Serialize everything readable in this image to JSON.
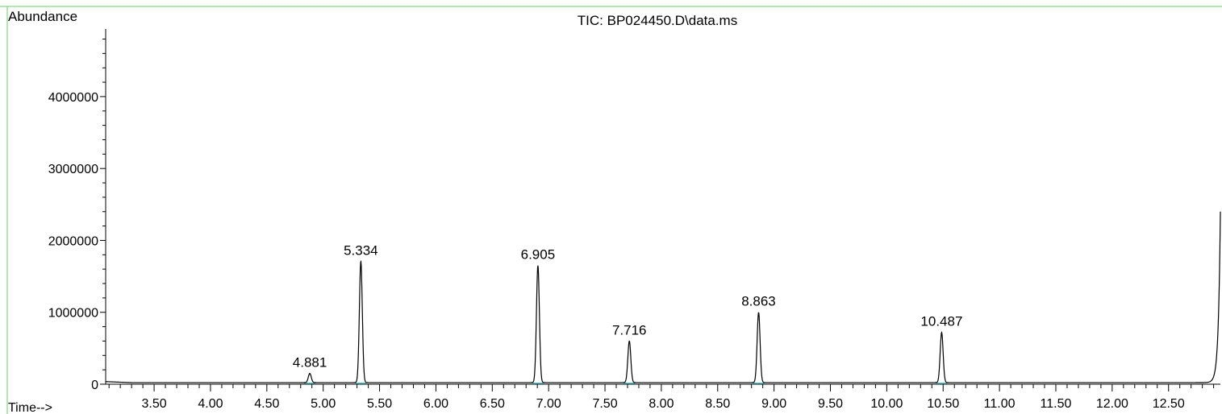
{
  "chart_data": {
    "type": "line",
    "title": "TIC: BP024450.D\\data.ms",
    "ylabel": "Abundance",
    "xlabel": "Time-->",
    "xlim": [
      3.07,
      12.96
    ],
    "ylim": [
      0,
      4940000
    ],
    "x_ticks": [
      "3.50",
      "4.00",
      "4.50",
      "5.00",
      "5.50",
      "6.00",
      "6.50",
      "7.00",
      "7.50",
      "8.00",
      "8.50",
      "9.00",
      "9.50",
      "10.00",
      "10.50",
      "11.00",
      "11.50",
      "12.00",
      "12.50"
    ],
    "y_ticks": [
      "0",
      "1000000",
      "2000000",
      "3000000",
      "4000000"
    ],
    "baseline": 22000,
    "end_rise": {
      "x": 12.96,
      "y": 2400000
    },
    "series": [
      {
        "peaks": [
          {
            "label": "4.881",
            "x": 4.881,
            "y": 150000
          },
          {
            "label": "5.334",
            "x": 5.334,
            "y": 1710000
          },
          {
            "label": "6.905",
            "x": 6.905,
            "y": 1650000
          },
          {
            "label": "7.716",
            "x": 7.716,
            "y": 600000
          },
          {
            "label": "8.863",
            "x": 8.863,
            "y": 1000000
          },
          {
            "label": "10.487",
            "x": 10.487,
            "y": 720000
          }
        ]
      }
    ]
  },
  "colors": {
    "trace": "#000000",
    "frame": "#66cc66",
    "integration": "#33aaaa"
  }
}
